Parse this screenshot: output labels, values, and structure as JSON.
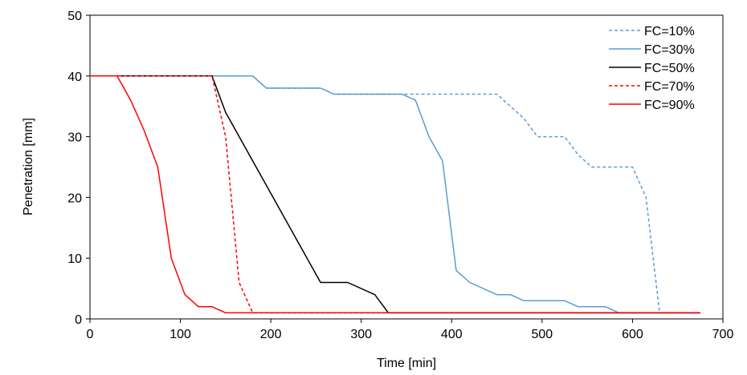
{
  "chart_data": {
    "type": "line",
    "xlabel": "Time [min]",
    "ylabel": "Penetration [mm]",
    "xlim": [
      0,
      700
    ],
    "ylim": [
      0,
      50
    ],
    "xticks": [
      0,
      100,
      200,
      300,
      400,
      500,
      600,
      700
    ],
    "yticks": [
      0,
      10,
      20,
      30,
      40,
      50
    ],
    "grid": false,
    "legend_position": "top-right",
    "series": [
      {
        "name": "FC=10%",
        "color": "#5b9bd5",
        "dash": "dashed",
        "points": [
          [
            0,
            40
          ],
          [
            180,
            40
          ],
          [
            195,
            38
          ],
          [
            255,
            38
          ],
          [
            270,
            37
          ],
          [
            450,
            37
          ],
          [
            480,
            33
          ],
          [
            495,
            30
          ],
          [
            525,
            30
          ],
          [
            540,
            27
          ],
          [
            555,
            25
          ],
          [
            600,
            25
          ],
          [
            615,
            20
          ],
          [
            630,
            1
          ],
          [
            675,
            1
          ]
        ]
      },
      {
        "name": "FC=30%",
        "color": "#5b9bd5",
        "dash": "solid",
        "points": [
          [
            0,
            40
          ],
          [
            180,
            40
          ],
          [
            195,
            38
          ],
          [
            255,
            38
          ],
          [
            270,
            37
          ],
          [
            345,
            37
          ],
          [
            360,
            36
          ],
          [
            375,
            30
          ],
          [
            390,
            26
          ],
          [
            405,
            8
          ],
          [
            420,
            6
          ],
          [
            450,
            4
          ],
          [
            465,
            4
          ],
          [
            480,
            3
          ],
          [
            525,
            3
          ],
          [
            540,
            2
          ],
          [
            570,
            2
          ],
          [
            585,
            1
          ],
          [
            675,
            1
          ]
        ]
      },
      {
        "name": "FC=50%",
        "color": "#000000",
        "dash": "solid",
        "points": [
          [
            0,
            40
          ],
          [
            135,
            40
          ],
          [
            150,
            34
          ],
          [
            255,
            6
          ],
          [
            285,
            6
          ],
          [
            315,
            4
          ],
          [
            330,
            1
          ],
          [
            675,
            1
          ]
        ]
      },
      {
        "name": "FC=70%",
        "color": "#ff0000",
        "dash": "dashed",
        "points": [
          [
            0,
            40
          ],
          [
            135,
            40
          ],
          [
            150,
            30
          ],
          [
            165,
            6
          ],
          [
            180,
            1
          ],
          [
            675,
            1
          ]
        ]
      },
      {
        "name": "FC=90%",
        "color": "#ff0000",
        "dash": "solid",
        "points": [
          [
            0,
            40
          ],
          [
            30,
            40
          ],
          [
            45,
            36
          ],
          [
            60,
            31
          ],
          [
            75,
            25
          ],
          [
            90,
            10
          ],
          [
            105,
            4
          ],
          [
            120,
            2
          ],
          [
            135,
            2
          ],
          [
            150,
            1
          ],
          [
            675,
            1
          ]
        ]
      }
    ]
  }
}
